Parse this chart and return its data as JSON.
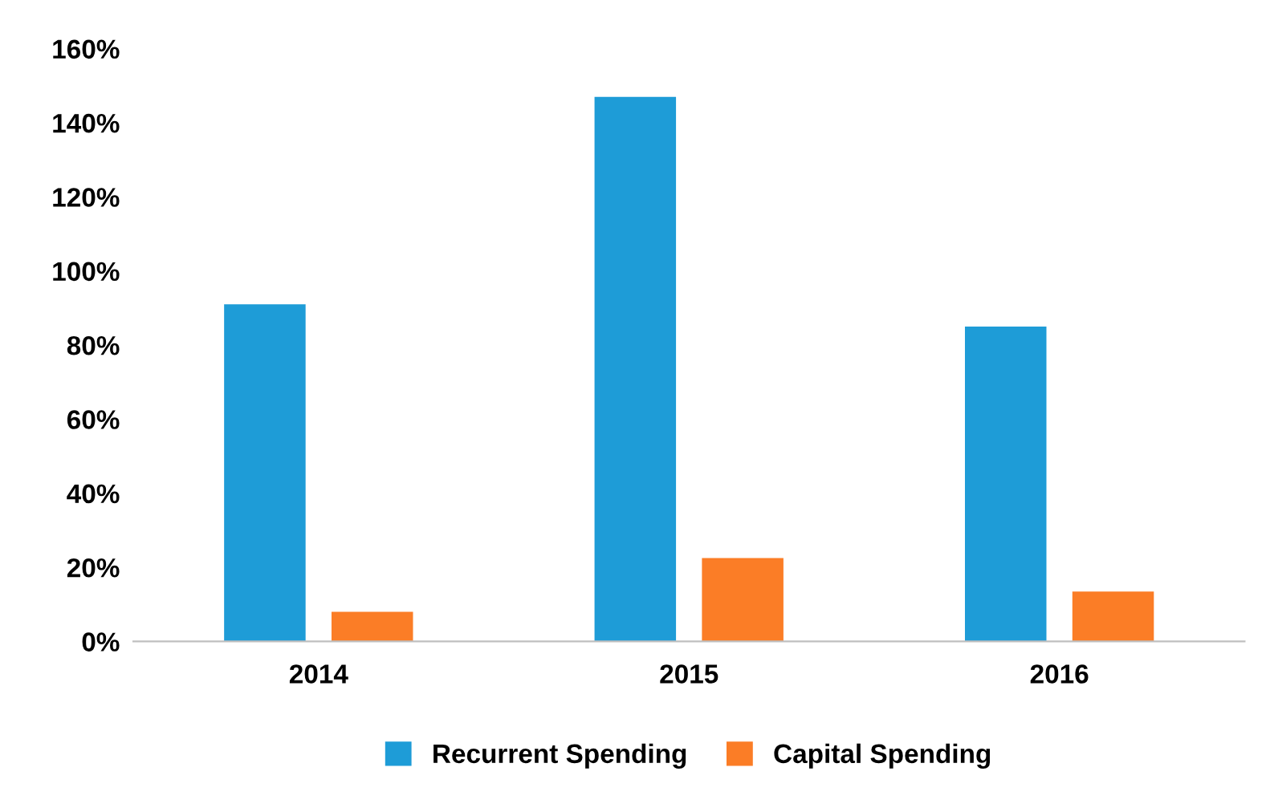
{
  "chart_data": {
    "type": "bar",
    "categories": [
      "2014",
      "2015",
      "2016"
    ],
    "series": [
      {
        "name": "Recurrent Spending",
        "color": "#1e9cd7",
        "values": [
          91,
          147,
          85
        ]
      },
      {
        "name": "Capital Spending",
        "color": "#fb7d26",
        "values": [
          8,
          22.5,
          13.5
        ]
      }
    ],
    "ylim": [
      0,
      160
    ],
    "yticks": [
      {
        "value": 0,
        "label": "0%"
      },
      {
        "value": 20,
        "label": "20%"
      },
      {
        "value": 40,
        "label": "40%"
      },
      {
        "value": 60,
        "label": "60%"
      },
      {
        "value": 80,
        "label": "80%"
      },
      {
        "value": 100,
        "label": "100%"
      },
      {
        "value": 120,
        "label": "120%"
      },
      {
        "value": 140,
        "label": "140%"
      },
      {
        "value": 160,
        "label": "160%"
      }
    ],
    "grid": false,
    "legend": "bottom"
  }
}
